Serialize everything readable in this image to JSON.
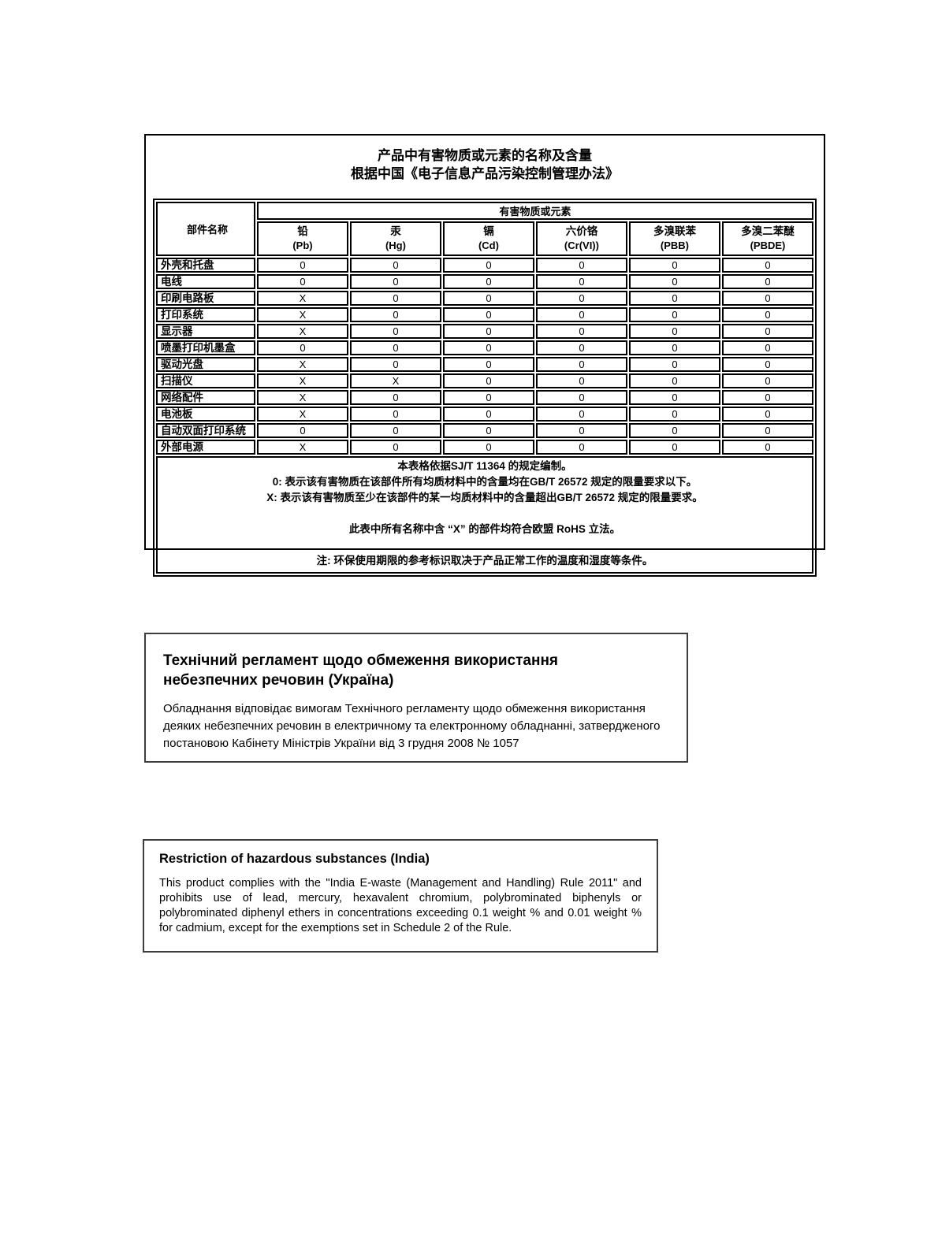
{
  "colors": {
    "background": "#ffffff",
    "text": "#000000",
    "table_border": "#000000",
    "notice_border": "#3d3d3d"
  },
  "china": {
    "title_line1": "产品中有害物质或元素的名称及含量",
    "title_line2": "根据中国《电子信息产品污染控制管理办法》",
    "table": {
      "component_header": "部件名称",
      "substances_header": "有害物质或元素",
      "columns": [
        {
          "name": "铅",
          "symbol": "(Pb)"
        },
        {
          "name": "汞",
          "symbol": "(Hg)"
        },
        {
          "name": "镉",
          "symbol": "(Cd)"
        },
        {
          "name": "六价铬",
          "symbol": "(Cr(VI))"
        },
        {
          "name": "多溴联苯",
          "symbol": "(PBB)"
        },
        {
          "name": "多溴二苯醚",
          "symbol": "(PBDE)"
        }
      ],
      "rows": [
        {
          "component": "外壳和托盘",
          "values": [
            "0",
            "0",
            "0",
            "0",
            "0",
            "0"
          ]
        },
        {
          "component": "电线",
          "values": [
            "0",
            "0",
            "0",
            "0",
            "0",
            "0"
          ]
        },
        {
          "component": "印刷电路板",
          "values": [
            "X",
            "0",
            "0",
            "0",
            "0",
            "0"
          ]
        },
        {
          "component": "打印系统",
          "values": [
            "X",
            "0",
            "0",
            "0",
            "0",
            "0"
          ]
        },
        {
          "component": "显示器",
          "values": [
            "X",
            "0",
            "0",
            "0",
            "0",
            "0"
          ]
        },
        {
          "component": "喷墨打印机墨盒",
          "values": [
            "0",
            "0",
            "0",
            "0",
            "0",
            "0"
          ]
        },
        {
          "component": "驱动光盘",
          "values": [
            "X",
            "0",
            "0",
            "0",
            "0",
            "0"
          ]
        },
        {
          "component": "扫描仪",
          "values": [
            "X",
            "X",
            "0",
            "0",
            "0",
            "0"
          ]
        },
        {
          "component": "网络配件",
          "values": [
            "X",
            "0",
            "0",
            "0",
            "0",
            "0"
          ]
        },
        {
          "component": "电池板",
          "values": [
            "X",
            "0",
            "0",
            "0",
            "0",
            "0"
          ]
        },
        {
          "component": "自动双面打印系统",
          "values": [
            "0",
            "0",
            "0",
            "0",
            "0",
            "0"
          ]
        },
        {
          "component": "外部电源",
          "values": [
            "X",
            "0",
            "0",
            "0",
            "0",
            "0"
          ]
        }
      ],
      "notes": [
        "本表格依据SJ/T 11364 的规定编制。",
        "0:  表示该有害物质在该部件所有均质材料中的含量均在GB/T 26572 规定的限量要求以下。",
        "X:  表示该有害物质至少在该部件的某一均质材料中的含量超出GB/T 26572 规定的限量要求。",
        "",
        "此表中所有名称中含 “X” 的部件均符合欧盟 RoHS 立法。",
        "",
        "注: 环保使用期限的参考标识取决于产品正常工作的温度和湿度等条件。"
      ]
    }
  },
  "ukraine": {
    "title": "Технічний регламент щодо обмеження використання небезпечних речовин (Україна)",
    "body": "Обладнання відповідає вимогам Технічного регламенту щодо обмеження використання деяких небезпечних речовин в електричному та електронному обладнанні, затвердженого постановою Кабінету Міністрів України від 3 грудня 2008 № 1057"
  },
  "india": {
    "title": "Restriction of hazardous substances (India)",
    "body": "This product complies with the \"India E-waste (Management and Handling) Rule 2011\" and prohibits use of lead, mercury, hexavalent chromium, polybrominated biphenyls or polybrominated diphenyl ethers in concentrations exceeding 0.1 weight % and 0.01 weight % for cadmium, except for the exemptions set in Schedule 2 of the Rule."
  }
}
